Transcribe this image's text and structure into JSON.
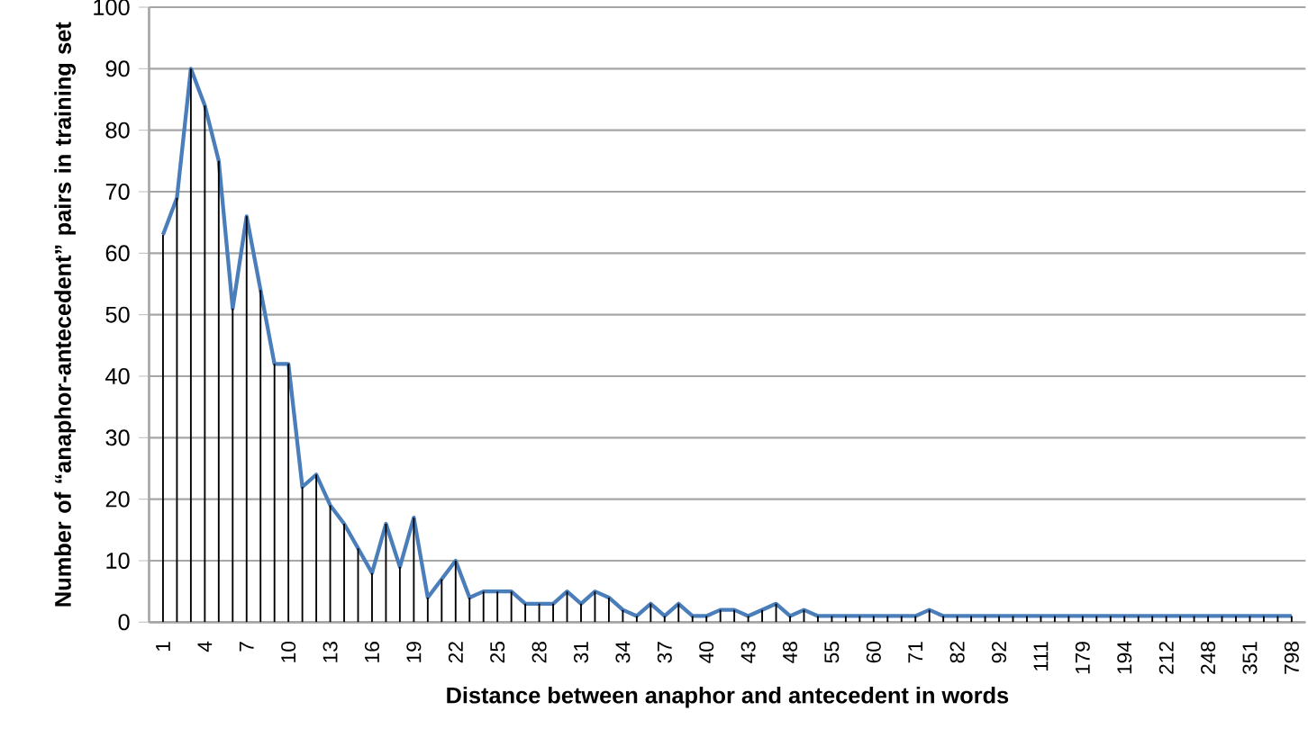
{
  "chart_data": {
    "type": "line",
    "xlabel": "Distance between anaphor and antecedent in words",
    "ylabel": "Number of “anaphor-antecedent” pairs in training set",
    "categories": [
      "1",
      null,
      null,
      "4",
      null,
      null,
      "7",
      null,
      null,
      "10",
      null,
      null,
      "13",
      null,
      null,
      "16",
      null,
      null,
      "19",
      null,
      null,
      "22",
      null,
      null,
      "25",
      null,
      null,
      "28",
      null,
      null,
      "31",
      null,
      null,
      "34",
      null,
      null,
      "37",
      null,
      null,
      "40",
      null,
      null,
      "43",
      null,
      null,
      "48",
      null,
      null,
      "55",
      null,
      null,
      "60",
      null,
      null,
      "71",
      null,
      null,
      "82",
      null,
      null,
      "92",
      null,
      null,
      "111",
      null,
      null,
      "179",
      null,
      null,
      "194",
      null,
      null,
      "212",
      null,
      null,
      "248",
      null,
      null,
      "351",
      null,
      null,
      "798"
    ],
    "series": [
      {
        "type": "bar",
        "color": "#000000",
        "values": [
          63,
          69,
          90,
          84,
          75,
          51,
          66,
          54,
          42,
          42,
          22,
          24,
          19,
          16,
          12,
          8,
          16,
          9,
          17,
          4,
          7,
          10,
          4,
          5,
          5,
          5,
          3,
          3,
          3,
          5,
          3,
          5,
          4,
          2,
          1,
          3,
          1,
          3,
          1,
          1,
          2,
          2,
          1,
          2,
          3,
          1,
          2,
          1,
          1,
          1,
          1,
          1,
          1,
          1,
          1,
          2,
          1,
          1,
          1,
          1,
          1,
          1,
          1,
          1,
          1,
          1,
          1,
          1,
          1,
          1,
          1,
          1,
          1,
          1,
          1,
          1,
          1,
          1,
          1,
          1,
          1,
          1
        ]
      },
      {
        "color": "#4a7ebb",
        "values": [
          63,
          69,
          90,
          84,
          75,
          51,
          66,
          54,
          42,
          42,
          22,
          24,
          19,
          16,
          12,
          8,
          16,
          9,
          17,
          4,
          7,
          10,
          4,
          5,
          5,
          5,
          3,
          3,
          3,
          5,
          3,
          5,
          4,
          2,
          1,
          3,
          1,
          3,
          1,
          1,
          2,
          2,
          1,
          2,
          3,
          1,
          2,
          1,
          1,
          1,
          1,
          1,
          1,
          1,
          1,
          2,
          1,
          1,
          1,
          1,
          1,
          1,
          1,
          1,
          1,
          1,
          1,
          1,
          1,
          1,
          1,
          1,
          1,
          1,
          1,
          1,
          1,
          1,
          1,
          1,
          1,
          1
        ]
      }
    ],
    "ylim": [
      0,
      100
    ],
    "yticks": [
      0,
      10,
      20,
      30,
      40,
      50,
      60,
      70,
      80,
      90,
      100
    ],
    "grid": "y",
    "legend": false
  }
}
